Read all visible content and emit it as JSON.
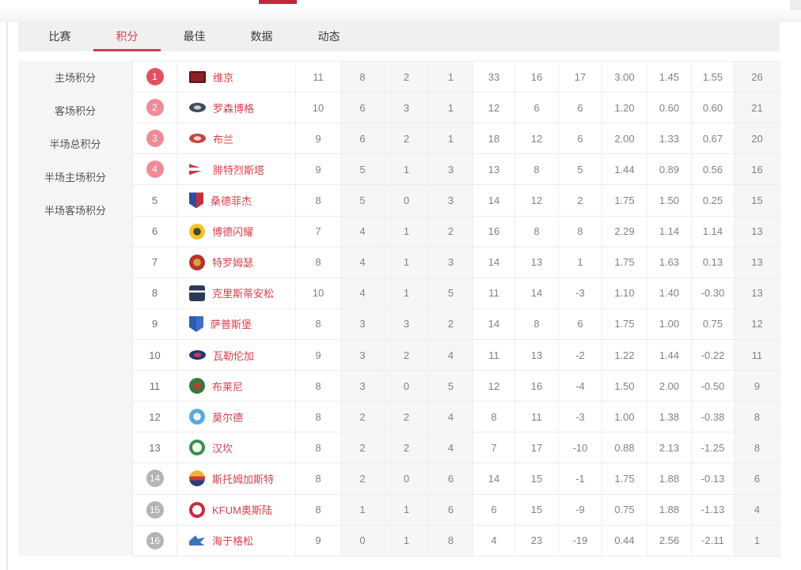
{
  "colors": {
    "accent": "#cf3f50",
    "top_indicator": "#c2283a",
    "team_name": "#d8404d",
    "badge_red": "#e3505f",
    "badge_pink": "#ee8b97",
    "badge_gray": "#b4b4b5",
    "shaded_column_bg": "#f6f6f9"
  },
  "tabs": [
    {
      "key": "matches",
      "label": "比赛",
      "active": false
    },
    {
      "key": "standings",
      "label": "积分",
      "active": true
    },
    {
      "key": "best",
      "label": "最佳",
      "active": false
    },
    {
      "key": "stats",
      "label": "数据",
      "active": false
    },
    {
      "key": "news",
      "label": "动态",
      "active": false
    }
  ],
  "sidebar": {
    "items": [
      {
        "key": "home-points",
        "label": "主场积分"
      },
      {
        "key": "away-points",
        "label": "客场积分"
      },
      {
        "key": "half-total-points",
        "label": "半场总积分"
      },
      {
        "key": "half-home-points",
        "label": "半场主场积分"
      },
      {
        "key": "half-away-points",
        "label": "半场客场积分"
      }
    ]
  },
  "table": {
    "shaded_value_indexes": [
      1,
      2,
      3,
      10
    ],
    "rows": [
      {
        "rank": "1",
        "rank_style": "red",
        "team": {
          "key": "viking",
          "label": "维京",
          "logo": {
            "shape": "banner",
            "colors": [
              "#8d2024",
              "#5f1013"
            ]
          }
        },
        "values": [
          "11",
          "8",
          "2",
          "1",
          "33",
          "16",
          "17",
          "3.00",
          "1.45",
          "1.55",
          "26"
        ]
      },
      {
        "rank": "2",
        "rank_style": "pink",
        "team": {
          "key": "rosenborg",
          "label": "罗森博格",
          "logo": {
            "shape": "oval",
            "colors": [
              "#434958",
              "#c9cdd4"
            ]
          }
        },
        "values": [
          "10",
          "6",
          "3",
          "1",
          "12",
          "6",
          "6",
          "1.20",
          "0.60",
          "0.60",
          "21"
        ]
      },
      {
        "rank": "3",
        "rank_style": "pink",
        "team": {
          "key": "brann",
          "label": "布兰",
          "logo": {
            "shape": "oval",
            "colors": [
              "#c4473f",
              "#f0ded2"
            ]
          }
        },
        "values": [
          "9",
          "6",
          "2",
          "1",
          "18",
          "12",
          "6",
          "2.00",
          "1.33",
          "0.67",
          "20"
        ]
      },
      {
        "rank": "4",
        "rank_style": "pink",
        "team": {
          "key": "fredrikstad",
          "label": "腓特烈斯塔",
          "logo": {
            "shape": "pennant",
            "colors": [
              "#d4333f",
              "#ffffff"
            ]
          }
        },
        "values": [
          "9",
          "5",
          "1",
          "3",
          "13",
          "8",
          "5",
          "1.44",
          "0.89",
          "0.56",
          "16"
        ]
      },
      {
        "rank": "5",
        "rank_style": "plain",
        "team": {
          "key": "sandefjord",
          "label": "桑德菲杰",
          "logo": {
            "shape": "shield",
            "colors": [
              "#2b4ea0",
              "#c53040"
            ]
          }
        },
        "values": [
          "8",
          "5",
          "0",
          "3",
          "14",
          "12",
          "2",
          "1.75",
          "1.50",
          "0.25",
          "15"
        ]
      },
      {
        "rank": "6",
        "rank_style": "plain",
        "team": {
          "key": "bodo-glimt",
          "label": "博德闪耀",
          "logo": {
            "shape": "circle2",
            "colors": [
              "#f0c428",
              "#4a4431"
            ]
          }
        },
        "values": [
          "7",
          "4",
          "1",
          "2",
          "16",
          "8",
          "8",
          "2.29",
          "1.14",
          "1.14",
          "13"
        ]
      },
      {
        "rank": "7",
        "rank_style": "plain",
        "team": {
          "key": "tromso",
          "label": "特罗姆瑟",
          "logo": {
            "shape": "circle2",
            "colors": [
              "#b5342c",
              "#d9a23c"
            ]
          }
        },
        "values": [
          "8",
          "4",
          "1",
          "3",
          "14",
          "13",
          "1",
          "1.75",
          "1.63",
          "0.13",
          "13"
        ]
      },
      {
        "rank": "8",
        "rank_style": "plain",
        "team": {
          "key": "kristiansund",
          "label": "克里斯蒂安松",
          "logo": {
            "shape": "square",
            "colors": [
              "#2b3a55",
              "#ffffff"
            ]
          }
        },
        "values": [
          "10",
          "4",
          "1",
          "5",
          "11",
          "14",
          "-3",
          "1.10",
          "1.40",
          "-0.30",
          "13"
        ]
      },
      {
        "rank": "9",
        "rank_style": "plain",
        "team": {
          "key": "sarpsborg",
          "label": "萨普斯堡",
          "logo": {
            "shape": "shield",
            "colors": [
              "#2d5bb0",
              "#3f6ec4"
            ]
          }
        },
        "values": [
          "8",
          "3",
          "3",
          "2",
          "14",
          "8",
          "6",
          "1.75",
          "1.00",
          "0.75",
          "12"
        ]
      },
      {
        "rank": "10",
        "rank_style": "plain",
        "team": {
          "key": "valerenga",
          "label": "瓦勒伦加",
          "logo": {
            "shape": "oval",
            "colors": [
              "#233a70",
              "#d5394a"
            ]
          }
        },
        "values": [
          "9",
          "3",
          "2",
          "4",
          "11",
          "13",
          "-2",
          "1.22",
          "1.44",
          "-0.22",
          "11"
        ]
      },
      {
        "rank": "11",
        "rank_style": "plain",
        "team": {
          "key": "bryne",
          "label": "布莱尼",
          "logo": {
            "shape": "circle2",
            "colors": [
              "#2e7d3a",
              "#c23b38"
            ]
          }
        },
        "values": [
          "8",
          "3",
          "0",
          "5",
          "12",
          "16",
          "-4",
          "1.50",
          "2.00",
          "-0.50",
          "9"
        ]
      },
      {
        "rank": "12",
        "rank_style": "plain",
        "team": {
          "key": "molde",
          "label": "莫尔德",
          "logo": {
            "shape": "circle2",
            "colors": [
              "#5aa7e0",
              "#eef6fd"
            ]
          }
        },
        "values": [
          "8",
          "2",
          "2",
          "4",
          "8",
          "11",
          "-3",
          "1.00",
          "1.38",
          "-0.38",
          "8"
        ]
      },
      {
        "rank": "13",
        "rank_style": "plain",
        "team": {
          "key": "hamkam",
          "label": "汉坎",
          "logo": {
            "shape": "ring",
            "colors": [
              "#3e8f4a",
              "#f2f8f2"
            ]
          }
        },
        "values": [
          "8",
          "2",
          "2",
          "4",
          "7",
          "17",
          "-10",
          "0.88",
          "2.13",
          "-1.25",
          "8"
        ]
      },
      {
        "rank": "14",
        "rank_style": "gray",
        "team": {
          "key": "stromsgodset",
          "label": "斯托姆加斯特",
          "logo": {
            "shape": "stripes",
            "colors": [
              "#e9b73c",
              "#cf3a3a",
              "#27407a"
            ]
          }
        },
        "values": [
          "8",
          "2",
          "0",
          "6",
          "14",
          "15",
          "-1",
          "1.75",
          "1.88",
          "-0.13",
          "6"
        ]
      },
      {
        "rank": "15",
        "rank_style": "gray",
        "team": {
          "key": "kfum-oslo",
          "label": "KFUM奥斯陆",
          "logo": {
            "shape": "ring",
            "colors": [
              "#c82c3e",
              "#ffffff"
            ]
          }
        },
        "values": [
          "8",
          "1",
          "1",
          "6",
          "6",
          "15",
          "-9",
          "0.75",
          "1.88",
          "-1.13",
          "4"
        ]
      },
      {
        "rank": "16",
        "rank_style": "gray",
        "team": {
          "key": "haugesund",
          "label": "海于格松",
          "logo": {
            "shape": "bird",
            "colors": [
              "#3f73b5",
              "#9db7d8"
            ]
          }
        },
        "values": [
          "9",
          "0",
          "1",
          "8",
          "4",
          "23",
          "-19",
          "0.44",
          "2.56",
          "-2.11",
          "1"
        ]
      }
    ]
  }
}
